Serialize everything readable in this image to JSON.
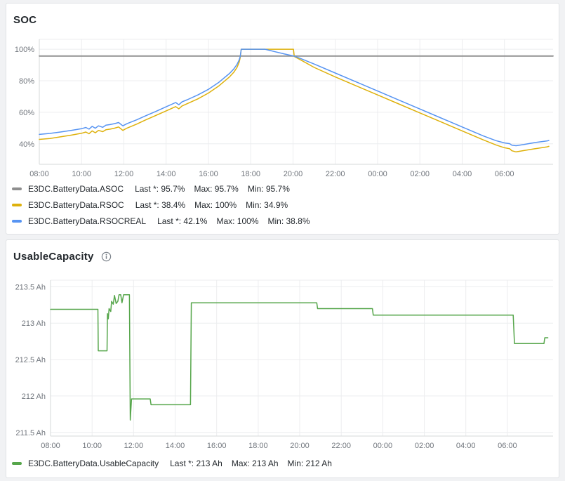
{
  "panels": [
    {
      "title": "SOC",
      "legend": [
        {
          "series": "E3DC.BatteryData.ASOC",
          "color": "#8e8e8e",
          "stats": [
            {
              "label": "Last *:",
              "value": "95.7%"
            },
            {
              "label": "Max:",
              "value": "95.7%"
            },
            {
              "label": "Min:",
              "value": "95.7%"
            }
          ]
        },
        {
          "series": "E3DC.BatteryData.RSOC",
          "color": "#deb10c",
          "stats": [
            {
              "label": "Last *:",
              "value": "38.4%"
            },
            {
              "label": "Max:",
              "value": "100%"
            },
            {
              "label": "Min:",
              "value": "34.9%"
            }
          ]
        },
        {
          "series": "E3DC.BatteryData.RSOCREAL",
          "color": "#5794f2",
          "stats": [
            {
              "label": "Last *:",
              "value": "42.1%"
            },
            {
              "label": "Max:",
              "value": "100%"
            },
            {
              "label": "Min:",
              "value": "38.8%"
            }
          ]
        }
      ]
    },
    {
      "title": "UsableCapacity",
      "icon": "info-circle",
      "legend": [
        {
          "series": "E3DC.BatteryData.UsableCapacity",
          "color": "#56a64b",
          "stats": [
            {
              "label": "Last *:",
              "value": "213 Ah"
            },
            {
              "label": "Max:",
              "value": "213 Ah"
            },
            {
              "label": "Min:",
              "value": "212 Ah"
            }
          ]
        }
      ]
    }
  ],
  "colors": {
    "page_bg": "#f1f2f4",
    "panel_bg": "#ffffff",
    "panel_border": "#e0e2e5",
    "asoc": "#8e8e8e",
    "rsoc": "#deb10c",
    "rsocreal": "#5794f2",
    "usable_capacity": "#56a64b"
  },
  "chart_data": [
    {
      "type": "line",
      "title": "SOC",
      "unit": "%",
      "grid": true,
      "grid_color": "#ecedef",
      "axis_color": "#d6d8da",
      "legend_position": "bottom",
      "xlim": [
        8,
        32.3
      ],
      "ylim": [
        27,
        106.3
      ],
      "x_ticks": [
        {
          "t": 8,
          "label": "08:00"
        },
        {
          "t": 10,
          "label": "10:00"
        },
        {
          "t": 12,
          "label": "12:00"
        },
        {
          "t": 14,
          "label": "14:00"
        },
        {
          "t": 16,
          "label": "16:00"
        },
        {
          "t": 18,
          "label": "18:00"
        },
        {
          "t": 20,
          "label": "20:00"
        },
        {
          "t": 22,
          "label": "22:00"
        },
        {
          "t": 24,
          "label": "00:00"
        },
        {
          "t": 26,
          "label": "02:00"
        },
        {
          "t": 28,
          "label": "04:00"
        },
        {
          "t": 30,
          "label": "06:00"
        }
      ],
      "y_ticks": [
        {
          "v": 40,
          "label": "40%"
        },
        {
          "v": 60,
          "label": "60%"
        },
        {
          "v": 80,
          "label": "80%"
        },
        {
          "v": 100,
          "label": "100%"
        }
      ],
      "series": [
        {
          "name": "E3DC.BatteryData.ASOC",
          "color": "#8e8e8e",
          "width": 1.8,
          "points": [
            [
              8,
              95.7
            ],
            [
              32.3,
              95.7
            ]
          ]
        },
        {
          "name": "E3DC.BatteryData.RSOC",
          "color": "#deb10c",
          "width": 1.5,
          "points": [
            [
              8,
              42.8
            ],
            [
              8.5,
              43.4
            ],
            [
              9,
              44.4
            ],
            [
              9.5,
              45.5
            ],
            [
              10,
              46.7
            ],
            [
              10.2,
              47.5
            ],
            [
              10.35,
              46.4
            ],
            [
              10.5,
              48.2
            ],
            [
              10.65,
              47
            ],
            [
              10.8,
              48.5
            ],
            [
              11,
              47.7
            ],
            [
              11.15,
              48.9
            ],
            [
              11.35,
              49.3
            ],
            [
              11.55,
              49.9
            ],
            [
              11.75,
              50.7
            ],
            [
              11.95,
              48.5
            ],
            [
              12.15,
              50
            ],
            [
              12.6,
              52.5
            ],
            [
              13,
              55
            ],
            [
              13.5,
              57.9
            ],
            [
              14,
              60.9
            ],
            [
              14.45,
              63.6
            ],
            [
              14.6,
              62.2
            ],
            [
              14.75,
              64
            ],
            [
              15,
              65.5
            ],
            [
              15.5,
              68.5
            ],
            [
              16,
              72.2
            ],
            [
              16.5,
              76.8
            ],
            [
              17,
              82.5
            ],
            [
              17.2,
              85.4
            ],
            [
              17.35,
              88.5
            ],
            [
              17.45,
              91.7
            ],
            [
              17.5,
              94.6
            ],
            [
              17.55,
              100
            ],
            [
              20.02,
              100
            ],
            [
              20.06,
              95.4
            ],
            [
              20.4,
              93
            ],
            [
              21,
              88.5
            ],
            [
              22,
              82.4
            ],
            [
              23,
              76.7
            ],
            [
              24,
              71
            ],
            [
              25,
              65.3
            ],
            [
              26,
              59.6
            ],
            [
              27,
              53.9
            ],
            [
              28,
              48.2
            ],
            [
              29,
              42.5
            ],
            [
              29.6,
              39.3
            ],
            [
              30,
              37.5
            ],
            [
              30.25,
              36.9
            ],
            [
              30.35,
              35.6
            ],
            [
              30.55,
              34.9
            ],
            [
              30.9,
              35.7
            ],
            [
              31.4,
              36.8
            ],
            [
              32,
              38
            ],
            [
              32.1,
              38.4
            ]
          ]
        },
        {
          "name": "E3DC.BatteryData.RSOCREAL",
          "color": "#5794f2",
          "width": 1.5,
          "points": [
            [
              8,
              46
            ],
            [
              8.5,
              46.6
            ],
            [
              9,
              47.5
            ],
            [
              9.5,
              48.5
            ],
            [
              10,
              49.6
            ],
            [
              10.2,
              50.4
            ],
            [
              10.35,
              49.3
            ],
            [
              10.5,
              51.1
            ],
            [
              10.65,
              49.9
            ],
            [
              10.8,
              51.4
            ],
            [
              11,
              50.5
            ],
            [
              11.15,
              51.8
            ],
            [
              11.35,
              52.2
            ],
            [
              11.55,
              52.8
            ],
            [
              11.75,
              53.5
            ],
            [
              11.95,
              51.4
            ],
            [
              12.15,
              52.8
            ],
            [
              12.6,
              55.2
            ],
            [
              13,
              57.6
            ],
            [
              13.5,
              60.5
            ],
            [
              14,
              63.5
            ],
            [
              14.45,
              66.2
            ],
            [
              14.6,
              64.8
            ],
            [
              14.75,
              66.6
            ],
            [
              15,
              68
            ],
            [
              15.5,
              71
            ],
            [
              16,
              74.6
            ],
            [
              16.5,
              79.1
            ],
            [
              17,
              84.7
            ],
            [
              17.2,
              87.5
            ],
            [
              17.35,
              90.4
            ],
            [
              17.45,
              93.2
            ],
            [
              17.5,
              95.3
            ],
            [
              17.55,
              100
            ],
            [
              18.68,
              100
            ],
            [
              19.1,
              98.6
            ],
            [
              19.6,
              97
            ],
            [
              20.05,
              95.7
            ],
            [
              20.4,
              93.9
            ],
            [
              21,
              90.6
            ],
            [
              22,
              84.9
            ],
            [
              23,
              79.2
            ],
            [
              24,
              73.5
            ],
            [
              25,
              67.8
            ],
            [
              26,
              62.1
            ],
            [
              27,
              56.4
            ],
            [
              28,
              50.7
            ],
            [
              29,
              45
            ],
            [
              29.6,
              42
            ],
            [
              30,
              40.6
            ],
            [
              30.25,
              40.1
            ],
            [
              30.35,
              39.1
            ],
            [
              30.55,
              38.8
            ],
            [
              30.9,
              39.5
            ],
            [
              31.4,
              40.7
            ],
            [
              32,
              41.8
            ],
            [
              32.1,
              42.1
            ]
          ]
        }
      ]
    },
    {
      "type": "line",
      "title": "UsableCapacity",
      "unit": "Ah",
      "grid": true,
      "grid_color": "#ecedef",
      "axis_color": "#d6d8da",
      "legend_position": "bottom",
      "xlim": [
        8,
        32.2
      ],
      "ylim": [
        211.45,
        213.59
      ],
      "x_ticks": [
        {
          "t": 8,
          "label": "08:00"
        },
        {
          "t": 10,
          "label": "10:00"
        },
        {
          "t": 12,
          "label": "12:00"
        },
        {
          "t": 14,
          "label": "14:00"
        },
        {
          "t": 16,
          "label": "16:00"
        },
        {
          "t": 18,
          "label": "18:00"
        },
        {
          "t": 20,
          "label": "20:00"
        },
        {
          "t": 22,
          "label": "22:00"
        },
        {
          "t": 24,
          "label": "00:00"
        },
        {
          "t": 26,
          "label": "02:00"
        },
        {
          "t": 28,
          "label": "04:00"
        },
        {
          "t": 30,
          "label": "06:00"
        }
      ],
      "y_ticks": [
        {
          "v": 211.5,
          "label": "211.5 Ah"
        },
        {
          "v": 212,
          "label": "212 Ah"
        },
        {
          "v": 212.5,
          "label": "212.5 Ah"
        },
        {
          "v": 213,
          "label": "213 Ah"
        },
        {
          "v": 213.5,
          "label": "213.5 Ah"
        }
      ],
      "series": [
        {
          "name": "E3DC.BatteryData.UsableCapacity",
          "color": "#56a64b",
          "width": 1.5,
          "points": [
            [
              8,
              213.19
            ],
            [
              10.28,
              213.19
            ],
            [
              10.3,
              212.62
            ],
            [
              10.72,
              212.62
            ],
            [
              10.74,
              213.13
            ],
            [
              10.78,
              213.06
            ],
            [
              10.82,
              213.2
            ],
            [
              10.9,
              213.16
            ],
            [
              10.94,
              213.3
            ],
            [
              11.02,
              213.26
            ],
            [
              11.08,
              213.38
            ],
            [
              11.16,
              213.27
            ],
            [
              11.24,
              213.3
            ],
            [
              11.3,
              213.39
            ],
            [
              11.38,
              213.39
            ],
            [
              11.44,
              213.28
            ],
            [
              11.52,
              213.39
            ],
            [
              11.62,
              213.39
            ],
            [
              11.8,
              213.39
            ],
            [
              11.84,
              211.67
            ],
            [
              11.9,
              211.96
            ],
            [
              12.8,
              211.96
            ],
            [
              12.84,
              211.88
            ],
            [
              14.74,
              211.88
            ],
            [
              14.78,
              213.28
            ],
            [
              20.82,
              213.28
            ],
            [
              20.86,
              213.2
            ],
            [
              23.5,
              213.2
            ],
            [
              23.54,
              213.11
            ],
            [
              30.28,
              213.11
            ],
            [
              30.34,
              212.72
            ],
            [
              31.76,
              212.72
            ],
            [
              31.8,
              212.8
            ],
            [
              31.95,
              212.8
            ]
          ]
        }
      ]
    }
  ]
}
